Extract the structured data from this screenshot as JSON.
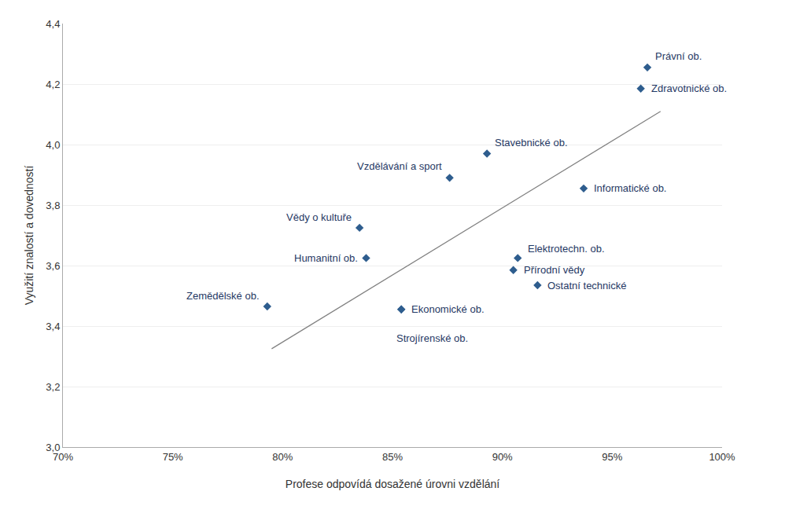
{
  "chart_data": {
    "type": "scatter",
    "x": [
      0.966,
      0.963,
      0.893,
      0.876,
      0.937,
      0.835,
      0.838,
      0.907,
      0.905,
      0.916,
      0.854,
      0.793,
      0.854
    ],
    "values": [
      4.255,
      4.185,
      3.97,
      3.89,
      3.855,
      3.725,
      3.625,
      3.625,
      3.585,
      3.535,
      3.455,
      3.465,
      3.455
    ],
    "labels": [
      "Právní ob.",
      "Zdravotnické ob.",
      "Stavebnické ob.",
      "Vzdělávání a sport",
      "Informatické ob.",
      "Vědy o kultuře",
      "Humanitní ob.",
      "Elektrotechn. ob.",
      "Přírodní vědy",
      "Ostatní technické",
      "Ekonomické ob.",
      "Zemědělské ob.",
      "Strojírenské ob."
    ],
    "color": "#2E5D8E",
    "marker": "diamond",
    "label_color": "#1F3864",
    "trendline": {
      "x": [
        0.795,
        0.972
      ],
      "values": [
        3.325,
        4.11
      ],
      "color": "#808080"
    },
    "xlabel": "Profese odpovídá dosažené úrovni vzdělání",
    "ylabel": "Využití znalostí a dovedností",
    "xlim": [
      0.7,
      1.0
    ],
    "ylim": [
      3.0,
      4.4
    ],
    "xticks": [
      {
        "value": 0.7,
        "label": "70%"
      },
      {
        "value": 0.75,
        "label": "75%"
      },
      {
        "value": 0.8,
        "label": "80%"
      },
      {
        "value": 0.85,
        "label": "85%"
      },
      {
        "value": 0.9,
        "label": "90%"
      },
      {
        "value": 0.95,
        "label": "95%"
      },
      {
        "value": 1.0,
        "label": "100%"
      }
    ],
    "yticks": [
      {
        "value": 3.0,
        "label": "3,0"
      },
      {
        "value": 3.2,
        "label": "3,2"
      },
      {
        "value": 3.4,
        "label": "3,4"
      },
      {
        "value": 3.6,
        "label": "3,6"
      },
      {
        "value": 3.8,
        "label": "3,8"
      },
      {
        "value": 4.0,
        "label": "4,0"
      },
      {
        "value": 4.2,
        "label": "4,2"
      },
      {
        "value": 4.4,
        "label": "4,4"
      }
    ],
    "grid": "y"
  }
}
